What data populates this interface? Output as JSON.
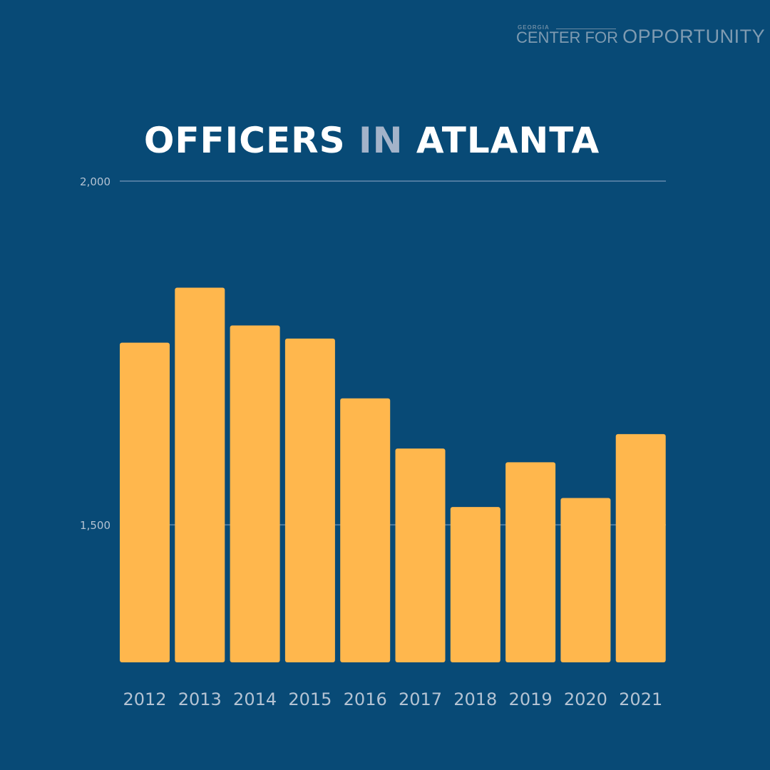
{
  "logo": {
    "small": "GEORGIA",
    "line": "CENTER FOR",
    "big": "OPPORTUNITY"
  },
  "title": {
    "part1": "OFFICERS",
    "part2": "IN",
    "part3": "ATLANTA"
  },
  "colors": {
    "background": "#084a76",
    "bar": "#ffb74d",
    "gridline": "#4d7aa0",
    "axis_text": "#b4c3d3",
    "title_accent": "#a3b3c9"
  },
  "chart_data": {
    "type": "bar",
    "title": "OFFICERS IN ATLANTA",
    "categories": [
      "2012",
      "2013",
      "2014",
      "2015",
      "2016",
      "2017",
      "2018",
      "2019",
      "2020",
      "2021"
    ],
    "values": [
      1765,
      1845,
      1790,
      1771,
      1684,
      1611,
      1526,
      1591,
      1539,
      1632
    ],
    "ylim": [
      1300,
      2000
    ],
    "yticks": [
      {
        "value": 2000,
        "label": "2,000"
      },
      {
        "value": 1500,
        "label": "1,500"
      }
    ],
    "xlabel": "",
    "ylabel": "",
    "grid": true
  }
}
